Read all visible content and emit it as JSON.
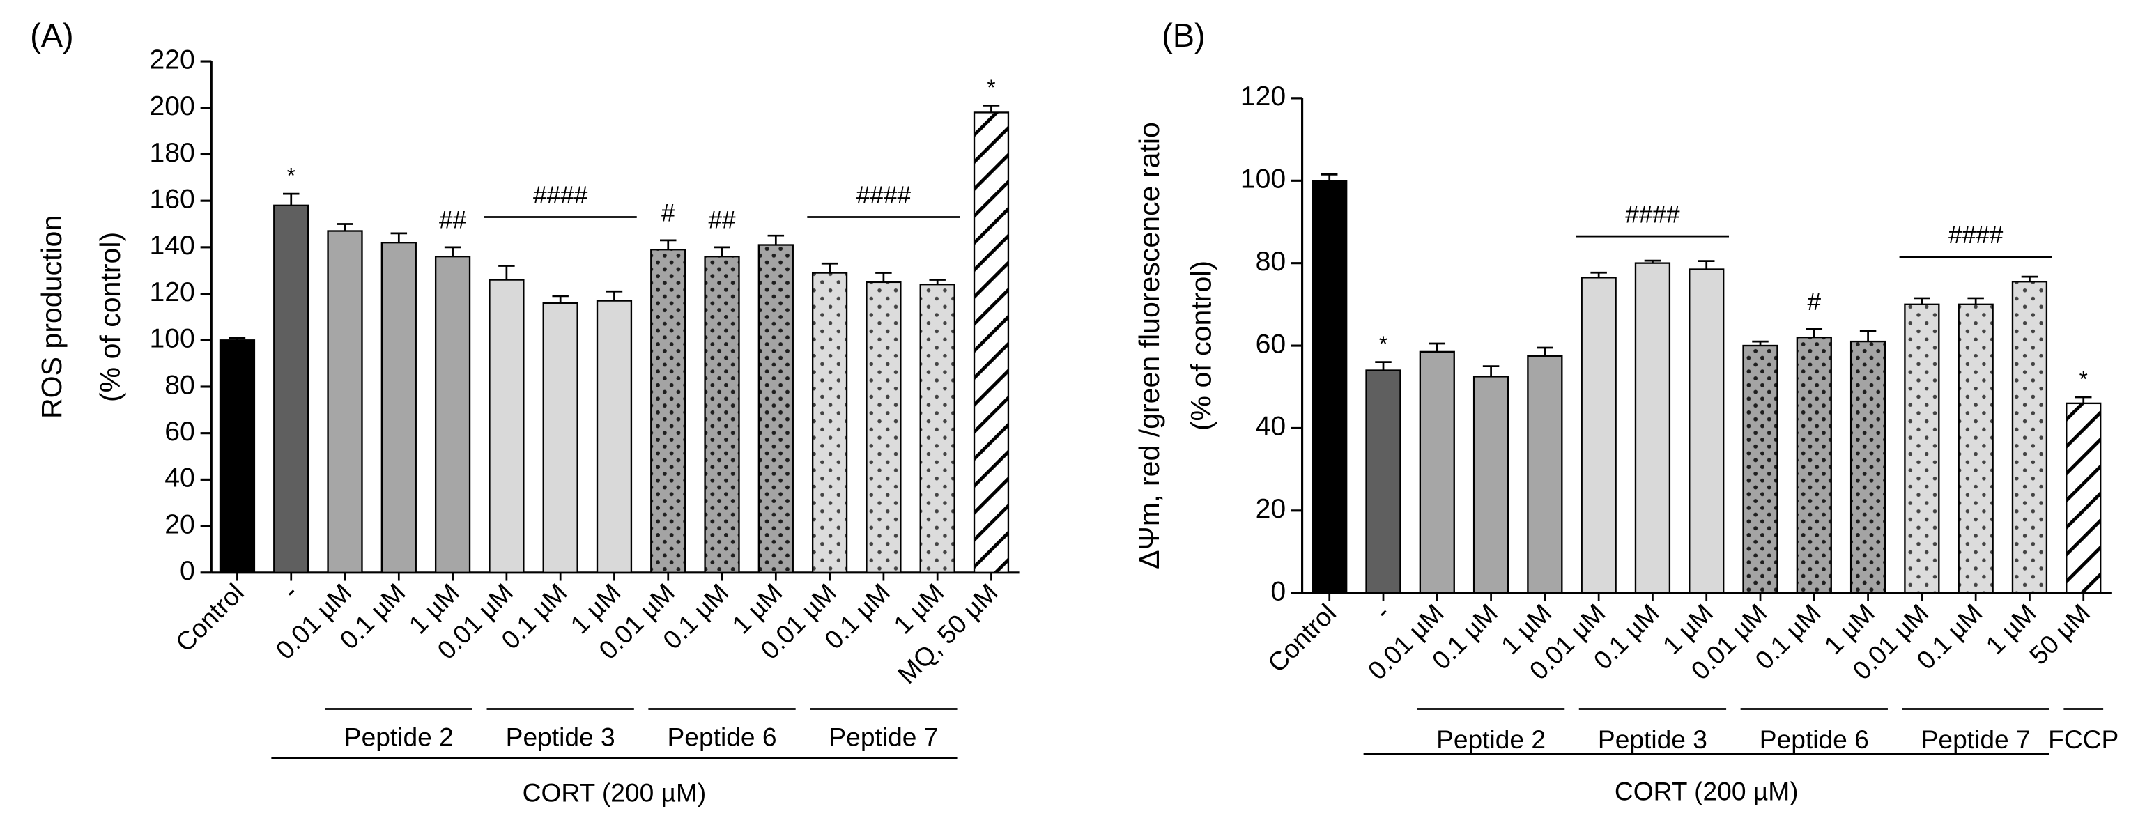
{
  "chart_data": [
    {
      "type": "bar",
      "panel_label": "(A)",
      "ylabel_line1": "ROS production",
      "ylabel_line2": "(% of control)",
      "ylim": [
        0,
        220
      ],
      "yticks": [
        0,
        20,
        40,
        60,
        80,
        100,
        120,
        140,
        160,
        180,
        200,
        220
      ],
      "categories": [
        "Control",
        "-",
        "0.01 µM",
        "0.1 µM",
        "1 µM",
        "0.01 µM",
        "0.1 µM",
        "1 µM",
        "0.01 µM",
        "0.1 µM",
        "1 µM",
        "0.01 µM",
        "0.1 µM",
        "1 µM",
        "MQ, 50 µM"
      ],
      "values": [
        100,
        158,
        147,
        142,
        136,
        126,
        116,
        117,
        139,
        136,
        141,
        129,
        125,
        124,
        198
      ],
      "errors": [
        1,
        5,
        3,
        4,
        4,
        6,
        3,
        4,
        4,
        4,
        4,
        4,
        4,
        2,
        3
      ],
      "fills": [
        "black",
        "dark",
        "gray",
        "gray",
        "gray",
        "light",
        "light",
        "light",
        "dots-dense",
        "dots-dense",
        "dots-dense",
        "dots-sparse",
        "dots-sparse",
        "dots-sparse",
        "hatch"
      ],
      "annotations": [
        {
          "bar": 1,
          "text": "*"
        },
        {
          "bar": 4,
          "text": "##"
        },
        {
          "bar": 8,
          "text": "#"
        },
        {
          "bar": 9,
          "text": "##"
        },
        {
          "bar": 14,
          "text": "*"
        }
      ],
      "bracket_annotations": [
        {
          "from": 5,
          "to": 7,
          "y": 153,
          "text": "####"
        },
        {
          "from": 11,
          "to": 13,
          "y": 153,
          "text": "####"
        }
      ],
      "groups": [
        {
          "label": "Peptide 2",
          "from": 2,
          "to": 4
        },
        {
          "label": "Peptide 3",
          "from": 5,
          "to": 7
        },
        {
          "label": "Peptide 6",
          "from": 8,
          "to": 10
        },
        {
          "label": "Peptide 7",
          "from": 11,
          "to": 13
        }
      ],
      "treatment": {
        "label": "CORT (200 µM)",
        "from": 1,
        "to": 13
      }
    },
    {
      "type": "bar",
      "panel_label": "(B)",
      "ylabel_line1": "ΔΨm, red /green fluorescence ratio",
      "ylabel_line2": "(% of control)",
      "ylim": [
        0,
        120
      ],
      "yticks": [
        0,
        20,
        40,
        60,
        80,
        100,
        120
      ],
      "categories": [
        "Control",
        "-",
        "0.01 µM",
        "0.1 µM",
        "1 µM",
        "0.01 µM",
        "0.1 µM",
        "1 µM",
        "0.01 µM",
        "0.1 µM",
        "1 µM",
        "0.01 µM",
        "0.1 µM",
        "1 µM",
        "50 µM"
      ],
      "values": [
        100,
        54,
        58.5,
        52.5,
        57.5,
        76.5,
        80,
        78.5,
        60,
        62,
        61,
        70,
        70,
        75.5,
        46
      ],
      "errors": [
        1.5,
        2,
        2,
        2.5,
        2,
        1.2,
        0.6,
        2,
        1,
        2,
        2.5,
        1.5,
        1.5,
        1.2,
        1.5
      ],
      "fills": [
        "black",
        "dark",
        "gray",
        "gray",
        "gray",
        "light",
        "light",
        "light",
        "dots-dense",
        "dots-dense",
        "dots-dense",
        "dots-sparse",
        "dots-sparse",
        "dots-sparse",
        "hatch"
      ],
      "annotations": [
        {
          "bar": 1,
          "text": "*"
        },
        {
          "bar": 9,
          "text": "#"
        },
        {
          "bar": 14,
          "text": "*"
        }
      ],
      "bracket_annotations": [
        {
          "from": 5,
          "to": 7,
          "y": 86.5,
          "text": "####"
        },
        {
          "from": 11,
          "to": 13,
          "y": 81.5,
          "text": "####"
        }
      ],
      "groups": [
        {
          "label": "Peptide 2",
          "from": 2,
          "to": 4
        },
        {
          "label": "Peptide 3",
          "from": 5,
          "to": 7
        },
        {
          "label": "Peptide 6",
          "from": 8,
          "to": 10
        },
        {
          "label": "Peptide 7",
          "from": 11,
          "to": 13
        },
        {
          "label": "FCCP",
          "from": 14,
          "to": 14
        }
      ],
      "treatment": {
        "label": "CORT (200 µM)",
        "from": 1,
        "to": 13
      }
    }
  ]
}
